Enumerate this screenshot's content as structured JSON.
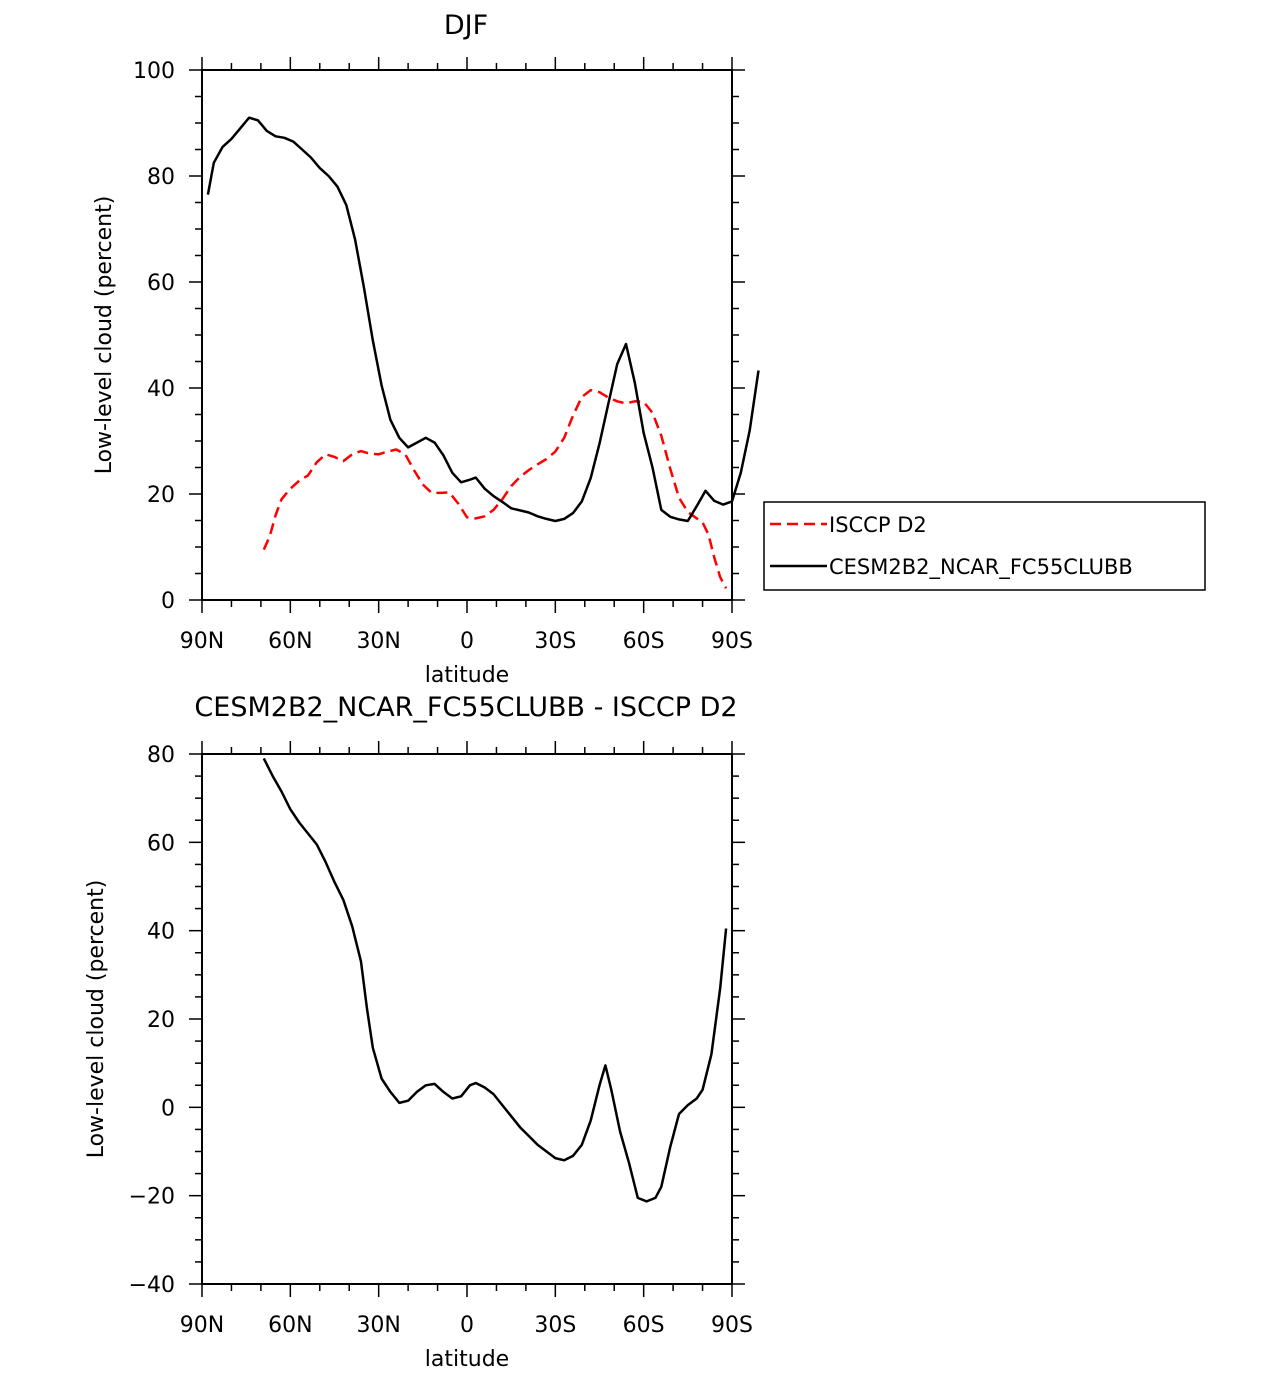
{
  "chart_data": [
    {
      "type": "line",
      "title": "DJF",
      "xlabel": "latitude",
      "ylabel": "Low-level cloud (percent)",
      "xlim": [
        90,
        -90
      ],
      "ylim": [
        0,
        100
      ],
      "x_ticks": [
        {
          "value": 90,
          "label": "90N"
        },
        {
          "value": 60,
          "label": "60N"
        },
        {
          "value": 30,
          "label": "30N"
        },
        {
          "value": 0,
          "label": "0"
        },
        {
          "value": -30,
          "label": "30S"
        },
        {
          "value": -60,
          "label": "60S"
        },
        {
          "value": -90,
          "label": "90S"
        }
      ],
      "y_ticks": [
        {
          "value": 0,
          "label": "0"
        },
        {
          "value": 20,
          "label": "20"
        },
        {
          "value": 40,
          "label": "40"
        },
        {
          "value": 60,
          "label": "60"
        },
        {
          "value": 80,
          "label": "80"
        },
        {
          "value": 100,
          "label": "100"
        }
      ],
      "legend_position": "right",
      "series": [
        {
          "name": "ISCCP D2",
          "color": "#ff0000",
          "dash": "dashed",
          "points": [
            [
              69,
              9.5
            ],
            [
              67,
              12
            ],
            [
              65,
              16
            ],
            [
              63,
              19
            ],
            [
              60,
              21
            ],
            [
              57,
              22.5
            ],
            [
              54,
              23.5
            ],
            [
              51,
              26
            ],
            [
              48,
              27.5
            ],
            [
              45,
              27
            ],
            [
              42,
              26.2
            ],
            [
              39,
              27.5
            ],
            [
              36,
              28.1
            ],
            [
              33,
              27.6
            ],
            [
              30,
              27.5
            ],
            [
              27,
              28
            ],
            [
              24,
              28.4
            ],
            [
              21,
              27.5
            ],
            [
              18,
              24.5
            ],
            [
              15,
              21.8
            ],
            [
              12,
              20.2
            ],
            [
              9,
              20.2
            ],
            [
              6,
              20.3
            ],
            [
              3,
              18.2
            ],
            [
              0,
              15.6
            ],
            [
              -3,
              15.4
            ],
            [
              -6,
              15.8
            ],
            [
              -9,
              17
            ],
            [
              -12,
              19
            ],
            [
              -15,
              21.5
            ],
            [
              -18,
              23.2
            ],
            [
              -21,
              24.5
            ],
            [
              -24,
              25.6
            ],
            [
              -27,
              26.6
            ],
            [
              -30,
              28
            ],
            [
              -33,
              30.6
            ],
            [
              -36,
              34.8
            ],
            [
              -39,
              38.3
            ],
            [
              -42,
              39.6
            ],
            [
              -45,
              39.2
            ],
            [
              -48,
              38.2
            ],
            [
              -51,
              37.5
            ],
            [
              -54,
              37.1
            ],
            [
              -57,
              37.5
            ],
            [
              -60,
              37.4
            ],
            [
              -63,
              35.3
            ],
            [
              -66,
              31
            ],
            [
              -69,
              24.8
            ],
            [
              -72,
              19.3
            ],
            [
              -75,
              16.6
            ],
            [
              -78,
              15.4
            ],
            [
              -80,
              14.6
            ],
            [
              -82,
              12.4
            ],
            [
              -84,
              8
            ],
            [
              -86,
              4.3
            ],
            [
              -88,
              2.2
            ]
          ]
        },
        {
          "name": "CESM2B2_NCAR_FC55CLUBB",
          "color": "#000000",
          "dash": "solid",
          "points": [
            [
              88,
              76.5
            ],
            [
              86,
              82.5
            ],
            [
              83,
              85.5
            ],
            [
              80,
              87
            ],
            [
              77,
              89
            ],
            [
              74,
              91
            ],
            [
              71,
              90.5
            ],
            [
              68,
              88.5
            ],
            [
              65,
              87.5
            ],
            [
              62,
              87.2
            ],
            [
              59,
              86.5
            ],
            [
              56,
              85
            ],
            [
              53,
              83.5
            ],
            [
              50,
              81.5
            ],
            [
              47,
              80
            ],
            [
              44,
              78
            ],
            [
              41,
              74.5
            ],
            [
              38,
              68
            ],
            [
              35,
              59
            ],
            [
              32,
              49
            ],
            [
              29,
              40.5
            ],
            [
              26,
              34
            ],
            [
              23,
              30.6
            ],
            [
              20,
              28.8
            ],
            [
              17,
              29.7
            ],
            [
              14,
              30.6
            ],
            [
              11,
              29.7
            ],
            [
              8,
              27.3
            ],
            [
              5,
              24
            ],
            [
              2,
              22.2
            ],
            [
              -1,
              22.7
            ],
            [
              -3,
              23.1
            ],
            [
              -6,
              21
            ],
            [
              -9,
              19.6
            ],
            [
              -12,
              18.5
            ],
            [
              -15,
              17.3
            ],
            [
              -18,
              16.9
            ],
            [
              -21,
              16.5
            ],
            [
              -24,
              15.8
            ],
            [
              -27,
              15.3
            ],
            [
              -30,
              14.9
            ],
            [
              -33,
              15.3
            ],
            [
              -36,
              16.4
            ],
            [
              -39,
              18.6
            ],
            [
              -42,
              23
            ],
            [
              -45,
              29.5
            ],
            [
              -48,
              37
            ],
            [
              -51,
              44.5
            ],
            [
              -54,
              48.3
            ],
            [
              -57,
              41
            ],
            [
              -60,
              31.5
            ],
            [
              -63,
              25
            ],
            [
              -66,
              17
            ],
            [
              -69,
              15.7
            ],
            [
              -72,
              15.2
            ],
            [
              -75,
              14.9
            ],
            [
              -78,
              17.7
            ],
            [
              -81,
              20.6
            ],
            [
              -84,
              18.7
            ],
            [
              -87,
              18
            ],
            [
              -90,
              18.6
            ],
            [
              -93,
              24
            ],
            [
              -96,
              32
            ],
            [
              -99,
              43.3
            ]
          ]
        }
      ]
    },
    {
      "type": "line",
      "title": "CESM2B2_NCAR_FC55CLUBB - ISCCP D2",
      "xlabel": "latitude",
      "ylabel": "Low-level cloud (percent)",
      "xlim": [
        90,
        -90
      ],
      "ylim": [
        -40,
        80
      ],
      "x_ticks": [
        {
          "value": 90,
          "label": "90N"
        },
        {
          "value": 60,
          "label": "60N"
        },
        {
          "value": 30,
          "label": "30N"
        },
        {
          "value": 0,
          "label": "0"
        },
        {
          "value": -30,
          "label": "30S"
        },
        {
          "value": -60,
          "label": "60S"
        },
        {
          "value": -90,
          "label": "90S"
        }
      ],
      "y_ticks": [
        {
          "value": -40,
          "label": "−40"
        },
        {
          "value": -20,
          "label": "−20"
        },
        {
          "value": 0,
          "label": "0"
        },
        {
          "value": 20,
          "label": "20"
        },
        {
          "value": 40,
          "label": "40"
        },
        {
          "value": 60,
          "label": "60"
        },
        {
          "value": 80,
          "label": "80"
        }
      ],
      "series": [
        {
          "color": "#000000",
          "dash": "solid",
          "points": [
            [
              69,
              79
            ],
            [
              66,
              75
            ],
            [
              63,
              71.5
            ],
            [
              60,
              67.5
            ],
            [
              57,
              64.5
            ],
            [
              54,
              62
            ],
            [
              51,
              59.5
            ],
            [
              48,
              55.5
            ],
            [
              45,
              51
            ],
            [
              42,
              47
            ],
            [
              39,
              41
            ],
            [
              36,
              33
            ],
            [
              34,
              22.5
            ],
            [
              32,
              13.5
            ],
            [
              29,
              6.5
            ],
            [
              26,
              3.5
            ],
            [
              23,
              1
            ],
            [
              20,
              1.5
            ],
            [
              17,
              3.5
            ],
            [
              14,
              5
            ],
            [
              11,
              5.3
            ],
            [
              8,
              3.5
            ],
            [
              5,
              2
            ],
            [
              2,
              2.5
            ],
            [
              -1,
              5
            ],
            [
              -3,
              5.5
            ],
            [
              -6,
              4.5
            ],
            [
              -9,
              3
            ],
            [
              -12,
              0.5
            ],
            [
              -15,
              -2
            ],
            [
              -18,
              -4.5
            ],
            [
              -21,
              -6.5
            ],
            [
              -24,
              -8.5
            ],
            [
              -27,
              -10
            ],
            [
              -30,
              -11.5
            ],
            [
              -33,
              -12
            ],
            [
              -36,
              -11
            ],
            [
              -39,
              -8.5
            ],
            [
              -42,
              -3
            ],
            [
              -45,
              5
            ],
            [
              -47,
              9.5
            ],
            [
              -49,
              4
            ],
            [
              -52,
              -5.5
            ],
            [
              -55,
              -12.5
            ],
            [
              -58,
              -20.5
            ],
            [
              -61,
              -21.3
            ],
            [
              -64,
              -20.5
            ],
            [
              -66,
              -18
            ],
            [
              -69,
              -9
            ],
            [
              -72,
              -1.5
            ],
            [
              -75,
              0.5
            ],
            [
              -78,
              2
            ],
            [
              -80,
              4
            ],
            [
              -83,
              12
            ],
            [
              -86,
              27
            ],
            [
              -88,
              40.5
            ]
          ]
        }
      ]
    }
  ]
}
